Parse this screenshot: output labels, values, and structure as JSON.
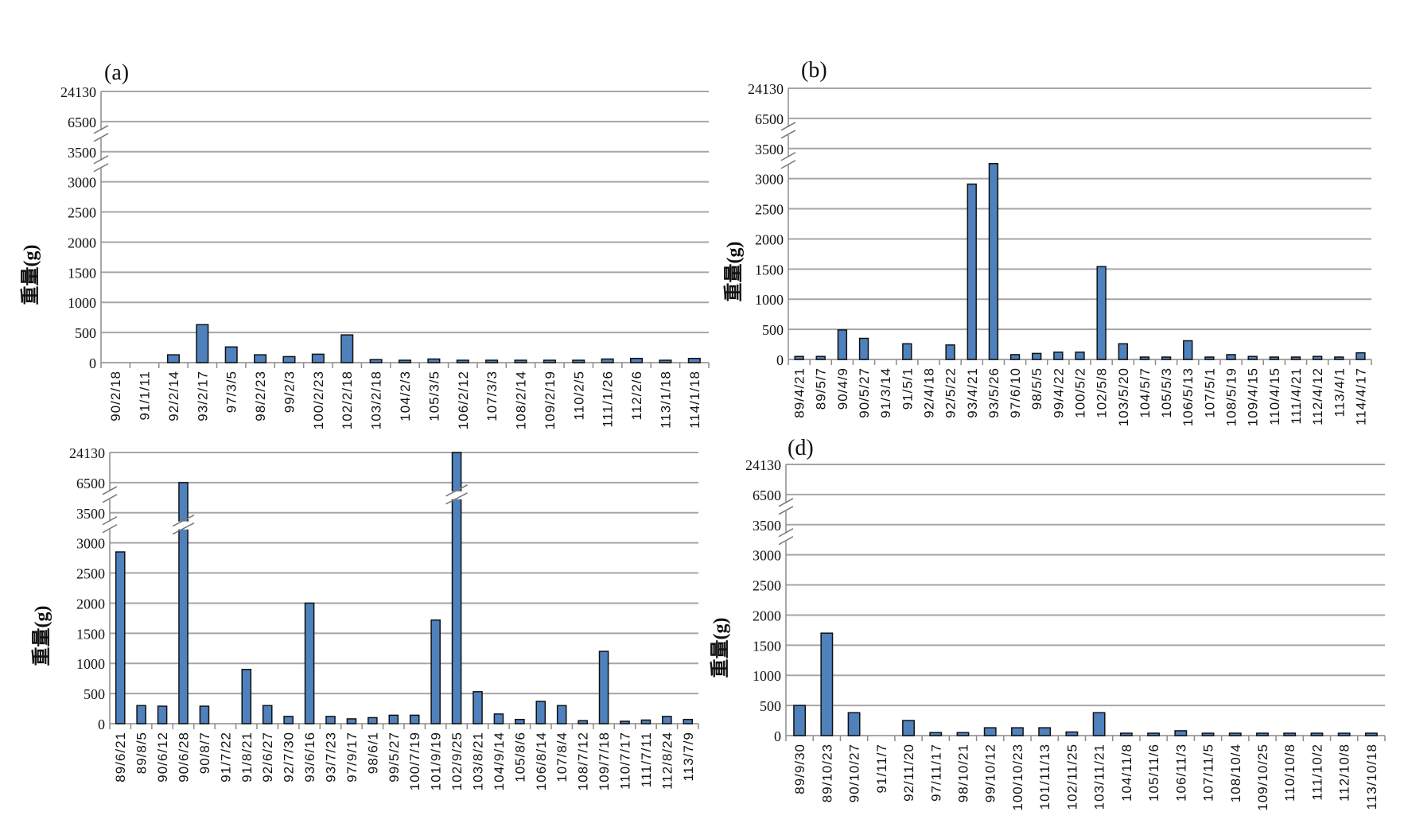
{
  "chart_data": [
    {
      "type": "bar",
      "title": "(a)",
      "ylabel": "重量(g)",
      "yticks": [
        "0",
        "500",
        "1000",
        "1500",
        "2000",
        "2500",
        "3000",
        "3500",
        "6500",
        "24130"
      ],
      "ylim": [
        0,
        24130
      ],
      "y_axis_break": true,
      "grid": true,
      "categories": [
        "90/2/18",
        "91/1/11",
        "92/2/14",
        "93/2/17",
        "97/3/5",
        "98/2/23",
        "99/2/3",
        "100/2/23",
        "102/2/18",
        "103/2/18",
        "104/2/3",
        "105/3/5",
        "106/2/12",
        "107/3/3",
        "108/2/14",
        "109/2/19",
        "110/2/5",
        "111/1/26",
        "112/2/6",
        "113/1/18",
        "114/1/18"
      ],
      "values": [
        0,
        0,
        130,
        630,
        260,
        130,
        100,
        140,
        460,
        50,
        10,
        60,
        5,
        10,
        10,
        10,
        5,
        60,
        70,
        20,
        70
      ]
    },
    {
      "type": "bar",
      "title": "(b)",
      "ylabel": "重量(g)",
      "yticks": [
        "0",
        "500",
        "1000",
        "1500",
        "2000",
        "2500",
        "3000",
        "3500",
        "6500",
        "24130"
      ],
      "ylim": [
        0,
        24130
      ],
      "y_axis_break": true,
      "grid": true,
      "categories": [
        "89/4/21",
        "89/5/7",
        "90/4/9",
        "90/5/27",
        "91/3/14",
        "91/5/1",
        "92/4/18",
        "92/5/22",
        "93/4/21",
        "93/5/26",
        "97/6/10",
        "98/5/5",
        "99/4/22",
        "100/5/2",
        "102/5/8",
        "103/5/20",
        "104/5/7",
        "105/5/3",
        "106/5/13",
        "107/5/1",
        "108/5/19",
        "109/4/15",
        "110/4/15",
        "111/4/21",
        "112/4/12",
        "113/4/1",
        "114/4/17"
      ],
      "values": [
        50,
        50,
        490,
        350,
        0,
        260,
        0,
        240,
        2910,
        3250,
        80,
        100,
        120,
        120,
        1540,
        260,
        20,
        10,
        310,
        10,
        80,
        50,
        20,
        10,
        50,
        10,
        110
      ]
    },
    {
      "type": "bar",
      "title": "",
      "ylabel": "重量(g)",
      "yticks": [
        "0",
        "500",
        "1000",
        "1500",
        "2000",
        "2500",
        "3000",
        "3500",
        "6500",
        "24130"
      ],
      "ylim": [
        0,
        24130
      ],
      "y_axis_break": true,
      "grid": true,
      "categories": [
        "89/6/21",
        "89/8/5",
        "90/6/12",
        "90/6/28",
        "90/8/7",
        "91/7/22",
        "91/8/21",
        "92/6/27",
        "92/7/30",
        "93/6/16",
        "93/7/23",
        "97/9/17",
        "98/6/1",
        "99/5/27",
        "100/7/19",
        "101/9/19",
        "102/9/25",
        "103/8/21",
        "104/9/14",
        "105/8/6",
        "106/8/14",
        "107/8/4",
        "108/7/12",
        "109/7/18",
        "110/7/17",
        "111/7/11",
        "112/8/24",
        "113/7/9"
      ],
      "values": [
        2850,
        300,
        290,
        6500,
        290,
        0,
        900,
        300,
        120,
        2000,
        120,
        80,
        100,
        140,
        140,
        1720,
        24130,
        530,
        160,
        70,
        370,
        300,
        50,
        1200,
        10,
        60,
        120,
        70
      ]
    },
    {
      "type": "bar",
      "title": "(d)",
      "ylabel": "重量(g)",
      "yticks": [
        "0",
        "500",
        "1000",
        "1500",
        "2000",
        "2500",
        "3000",
        "3500",
        "6500",
        "24130"
      ],
      "ylim": [
        0,
        24130
      ],
      "y_axis_break": true,
      "grid": true,
      "categories": [
        "89/9/30",
        "89/10/23",
        "90/10/27",
        "91/11/7",
        "92/11/20",
        "97/11/17",
        "98/10/21",
        "99/10/12",
        "100/10/23",
        "101/11/13",
        "102/11/25",
        "103/11/21",
        "104/11/8",
        "105/11/6",
        "106/11/3",
        "107/11/5",
        "108/10/4",
        "109/10/25",
        "110/10/8",
        "111/10/2",
        "112/10/8",
        "113/10/18"
      ],
      "values": [
        500,
        1700,
        380,
        0,
        250,
        50,
        50,
        130,
        130,
        130,
        60,
        380,
        10,
        20,
        80,
        20,
        40,
        30,
        20,
        20,
        10,
        10
      ]
    }
  ],
  "colors": {
    "bar": "#4f81bd",
    "grid": "#a6a6a6"
  }
}
